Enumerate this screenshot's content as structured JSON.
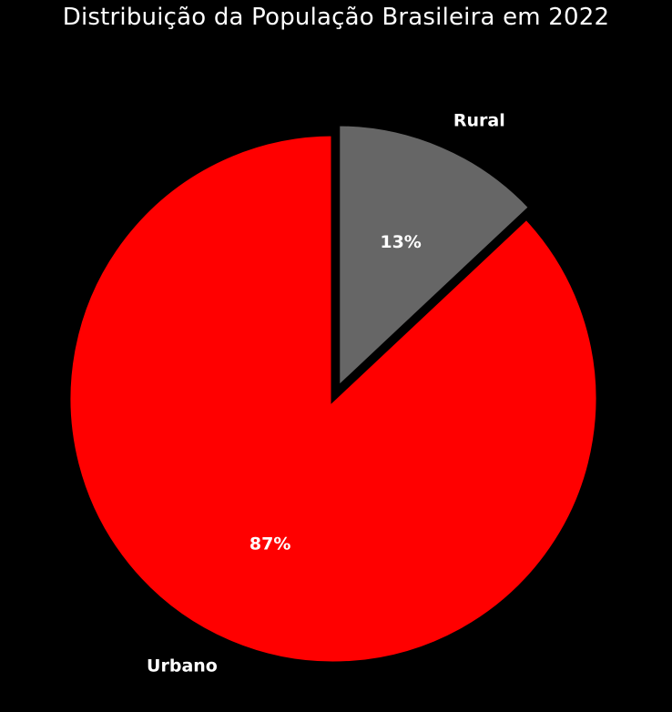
{
  "chart_data": {
    "type": "pie",
    "title": "Distribuição da População Brasileira em 2022",
    "slices": [
      {
        "label": "Rural",
        "value": 13,
        "pct_label": "13%",
        "color": "#666666",
        "exploded": true
      },
      {
        "label": "Urbano",
        "value": 87,
        "pct_label": "87%",
        "color": "#ff0000",
        "exploded": false
      }
    ],
    "start_angle": "top",
    "direction": "clockwise",
    "edge_color": "#000000"
  }
}
